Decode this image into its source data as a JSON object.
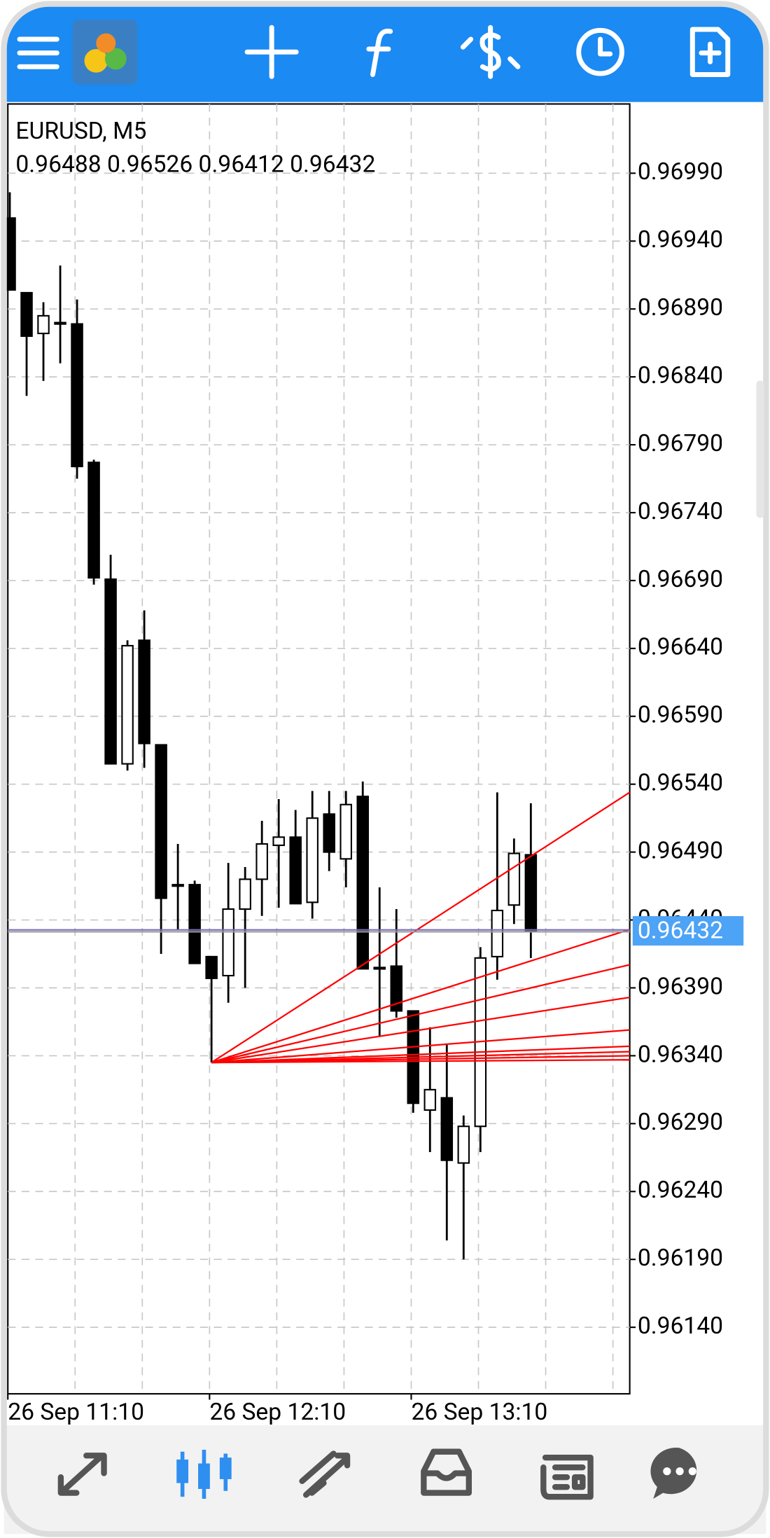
{
  "chart_data": {
    "type": "candlestick",
    "symbol": "EURUSD, M5",
    "ohlc_text": "0.96488 0.96526 0.96412 0.96432",
    "categories": [
      "26 Sep 11:10",
      null,
      null,
      null,
      null,
      null,
      null,
      null,
      null,
      null,
      null,
      null,
      "26 Sep 12:10",
      null,
      null,
      null,
      null,
      null,
      null,
      null,
      null,
      null,
      null,
      null,
      "26 Sep 13:10",
      null,
      null,
      null,
      null,
      null,
      null,
      null,
      null,
      null,
      null,
      null,
      null
    ],
    "open": [
      0.96957,
      0.96902,
      0.96872,
      0.9688,
      0.96879,
      0.96777,
      0.96691,
      0.96555,
      0.96646,
      0.96569,
      0.96466,
      0.96466,
      0.96413,
      0.96399,
      0.96448,
      0.9647,
      0.96495,
      0.96501,
      0.96453,
      0.96518,
      0.96485,
      0.96531,
      0.96405,
      0.96406,
      0.96373,
      0.963,
      0.96309,
      0.96261,
      0.96288,
      0.96413,
      0.96451,
      0.96488,
      null,
      null,
      null,
      null,
      null
    ],
    "high": [
      0.96976,
      0.96902,
      0.96895,
      0.96922,
      0.96897,
      0.96779,
      0.96709,
      0.96646,
      0.96668,
      0.96569,
      0.96496,
      0.96469,
      0.96413,
      0.96482,
      0.96479,
      0.96513,
      0.96529,
      0.96521,
      0.96535,
      0.96535,
      0.96535,
      0.96542,
      0.96464,
      0.96448,
      0.96373,
      0.96361,
      0.96348,
      0.96296,
      0.9642,
      0.96534,
      0.965,
      0.96526,
      null,
      null,
      null,
      null,
      null
    ],
    "low": [
      0.96904,
      0.96826,
      0.96837,
      0.9685,
      0.96765,
      0.96687,
      0.96555,
      0.9655,
      0.96552,
      0.96415,
      0.96433,
      0.96408,
      0.96335,
      0.96379,
      0.9639,
      0.96443,
      0.96449,
      0.96452,
      0.96441,
      0.96476,
      0.96464,
      0.96404,
      0.96354,
      0.96368,
      0.96298,
      0.96269,
      0.96204,
      0.9619,
      0.96269,
      0.96396,
      0.96437,
      0.96412,
      null,
      null,
      null,
      null,
      null
    ],
    "close": [
      0.96904,
      0.9687,
      0.96885,
      0.9688,
      0.96774,
      0.96692,
      0.96555,
      0.96642,
      0.9657,
      0.96456,
      0.96466,
      0.96408,
      0.96397,
      0.96448,
      0.9647,
      0.96496,
      0.96501,
      0.96452,
      0.96515,
      0.9649,
      0.96525,
      0.96404,
      0.96405,
      0.96373,
      0.96305,
      0.96315,
      0.96263,
      0.96288,
      0.96412,
      0.96447,
      0.96489,
      0.96432,
      null,
      null,
      null,
      null,
      null
    ],
    "up_color": "#ffffff",
    "down_color": "#000000",
    "ylim": [
      0.96091,
      0.97041
    ],
    "yticks": [
      {
        "value": 0.9699,
        "label": "0.96990"
      },
      {
        "value": 0.9694,
        "label": "0.96940"
      },
      {
        "value": 0.9689,
        "label": "0.96890"
      },
      {
        "value": 0.9684,
        "label": "0.96840"
      },
      {
        "value": 0.9679,
        "label": "0.96790"
      },
      {
        "value": 0.9674,
        "label": "0.96740"
      },
      {
        "value": 0.9669,
        "label": "0.96690"
      },
      {
        "value": 0.9664,
        "label": "0.96640"
      },
      {
        "value": 0.9659,
        "label": "0.96590"
      },
      {
        "value": 0.9654,
        "label": "0.96540"
      },
      {
        "value": 0.9649,
        "label": "0.96490"
      },
      {
        "value": 0.9644,
        "label": "0.96440"
      },
      {
        "value": 0.9639,
        "label": "0.96390"
      },
      {
        "value": 0.9634,
        "label": "0.96340"
      },
      {
        "value": 0.9629,
        "label": "0.96290"
      },
      {
        "value": 0.9624,
        "label": "0.96240"
      },
      {
        "value": 0.9619,
        "label": "0.96190"
      },
      {
        "value": 0.9614,
        "label": "0.96140"
      }
    ],
    "grid": true,
    "current_price": 0.96432,
    "current_price_color": "#4da3f5",
    "fan": {
      "color": "#ff0000",
      "origin_index": 12,
      "origin_price": 0.96335,
      "end_prices": [
        0.96534,
        0.96433,
        0.96407,
        0.96383,
        0.96359,
        0.96347,
        0.96343,
        0.9634,
        0.96337
      ]
    }
  }
}
